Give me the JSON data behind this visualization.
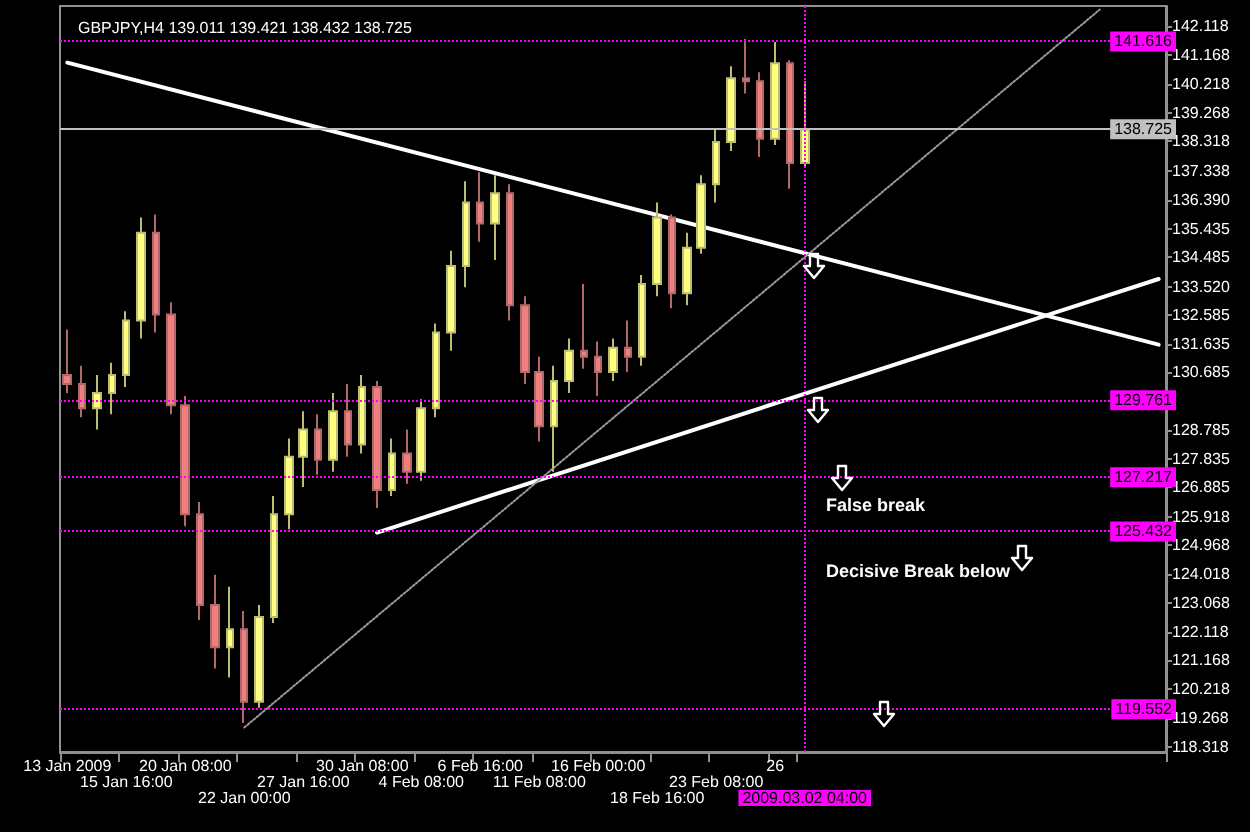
{
  "chart_data": {
    "type": "candlestick",
    "title": "GBPJPY,H4 139.011 139.421 138.432 138.725",
    "categories": [
      "13 Jan 2009",
      null,
      null,
      null,
      "15 Jan 16:00",
      null,
      null,
      null,
      "20 Jan 08:00",
      null,
      null,
      null,
      "22 Jan 00:00",
      null,
      null,
      null,
      "27 Jan 16:00",
      null,
      null,
      null,
      "30 Jan 08:00",
      null,
      null,
      null,
      "4 Feb 08:00",
      null,
      null,
      null,
      "6 Feb 16:00",
      null,
      null,
      null,
      "11 Feb 08:00",
      null,
      null,
      null,
      "16 Feb 00:00",
      null,
      null,
      null,
      "18 Feb 16:00",
      null,
      null,
      null,
      "23 Feb 08:00",
      null,
      null,
      null,
      "26",
      null,
      "2009.03.02 04:00",
      null,
      null,
      null,
      null,
      null,
      null,
      null,
      null,
      null,
      null,
      null,
      null,
      null,
      null,
      null,
      null,
      null,
      null,
      null,
      null,
      null,
      null,
      null,
      null
    ],
    "ohlc": [
      [
        130.6,
        132.1,
        130.0,
        130.3
      ],
      [
        130.3,
        130.9,
        129.2,
        129.5
      ],
      [
        129.5,
        130.6,
        128.8,
        130.0
      ],
      [
        130.0,
        131.0,
        129.3,
        130.6
      ],
      [
        130.6,
        132.7,
        130.2,
        132.4
      ],
      [
        132.4,
        135.8,
        131.8,
        135.3
      ],
      [
        135.3,
        135.9,
        132.0,
        132.6
      ],
      [
        132.6,
        133.0,
        129.3,
        129.6
      ],
      [
        129.6,
        129.9,
        125.6,
        126.0
      ],
      [
        126.0,
        126.4,
        122.5,
        123.0
      ],
      [
        123.0,
        124.0,
        120.9,
        121.6
      ],
      [
        121.6,
        123.6,
        120.6,
        122.2
      ],
      [
        122.2,
        122.8,
        119.1,
        119.8
      ],
      [
        119.8,
        123.0,
        119.6,
        122.6
      ],
      [
        122.6,
        126.6,
        122.4,
        126.0
      ],
      [
        126.0,
        128.5,
        125.5,
        127.9
      ],
      [
        127.9,
        129.4,
        126.9,
        128.8
      ],
      [
        128.8,
        129.3,
        127.3,
        127.8
      ],
      [
        127.8,
        130.0,
        127.4,
        129.4
      ],
      [
        129.4,
        130.3,
        127.9,
        128.3
      ],
      [
        128.3,
        130.6,
        128.0,
        130.2
      ],
      [
        130.2,
        130.4,
        126.2,
        126.8
      ],
      [
        126.8,
        128.5,
        126.6,
        128.0
      ],
      [
        128.0,
        128.8,
        127.0,
        127.4
      ],
      [
        127.4,
        129.8,
        127.1,
        129.5
      ],
      [
        129.5,
        132.3,
        129.2,
        132.0
      ],
      [
        132.0,
        134.7,
        131.4,
        134.2
      ],
      [
        134.2,
        137.0,
        133.5,
        136.3
      ],
      [
        136.3,
        137.3,
        135.0,
        135.6
      ],
      [
        135.6,
        137.2,
        134.4,
        136.6
      ],
      [
        136.6,
        136.9,
        132.4,
        132.9
      ],
      [
        132.9,
        133.2,
        130.3,
        130.7
      ],
      [
        130.7,
        131.2,
        128.4,
        128.9
      ],
      [
        128.9,
        130.9,
        127.4,
        130.4
      ],
      [
        130.4,
        131.8,
        130.0,
        131.4
      ],
      [
        131.4,
        133.6,
        130.8,
        131.2
      ],
      [
        131.2,
        131.7,
        129.9,
        130.7
      ],
      [
        130.7,
        131.8,
        130.4,
        131.5
      ],
      [
        131.5,
        132.4,
        130.7,
        131.2
      ],
      [
        131.2,
        133.9,
        130.9,
        133.6
      ],
      [
        133.6,
        136.3,
        133.2,
        135.8
      ],
      [
        135.8,
        135.9,
        132.8,
        133.3
      ],
      [
        133.3,
        135.3,
        132.9,
        134.8
      ],
      [
        134.8,
        137.2,
        134.6,
        136.9
      ],
      [
        136.9,
        138.7,
        136.3,
        138.3
      ],
      [
        138.3,
        140.8,
        138.0,
        140.4
      ],
      [
        140.4,
        141.7,
        139.9,
        140.3
      ],
      [
        140.3,
        140.6,
        137.8,
        138.4
      ],
      [
        138.4,
        141.6,
        138.2,
        140.9
      ],
      [
        140.9,
        141.0,
        136.75,
        137.6
      ],
      [
        137.6,
        140.3,
        137.5,
        138.7
      ],
      null,
      null,
      null,
      null,
      null,
      null,
      null,
      null,
      null,
      null,
      null,
      null,
      null,
      null,
      null,
      null,
      null,
      null,
      null,
      null,
      null,
      null,
      null,
      null
    ],
    "series": [
      {
        "type": "line",
        "color": "#ffffff",
        "line_style": "solid",
        "values": [
          140.92,
          null,
          null,
          null,
          null,
          null,
          null,
          null,
          null,
          null,
          null,
          null,
          null,
          null,
          null,
          null,
          null,
          null,
          null,
          null,
          null,
          null,
          null,
          null,
          null,
          null,
          null,
          null,
          null,
          null,
          null,
          null,
          null,
          null,
          null,
          null,
          null,
          null,
          null,
          null,
          null,
          null,
          null,
          null,
          null,
          null,
          null,
          null,
          null,
          null,
          null,
          null,
          null,
          null,
          null,
          null,
          null,
          null,
          null,
          null,
          null,
          null,
          null,
          null,
          null,
          null,
          null,
          null,
          null,
          null,
          null,
          null,
          null,
          null,
          131.6
        ]
      },
      {
        "type": "line",
        "color": "#ffffff",
        "line_style": "solid",
        "values": [
          null,
          null,
          null,
          null,
          null,
          null,
          null,
          null,
          null,
          null,
          null,
          null,
          null,
          null,
          null,
          null,
          null,
          null,
          null,
          null,
          null,
          125.39,
          null,
          null,
          null,
          null,
          null,
          null,
          null,
          null,
          null,
          null,
          null,
          null,
          null,
          null,
          null,
          null,
          null,
          null,
          null,
          null,
          null,
          null,
          null,
          null,
          null,
          null,
          null,
          null,
          null,
          null,
          null,
          null,
          null,
          null,
          null,
          null,
          null,
          null,
          null,
          null,
          null,
          null,
          null,
          null,
          null,
          null,
          null,
          null,
          null,
          null,
          null,
          null,
          133.77
        ]
      },
      {
        "type": "line",
        "color": "#9a9a9a",
        "line_style": "dotted",
        "values": [
          null,
          null,
          null,
          null,
          null,
          null,
          null,
          null,
          null,
          null,
          null,
          null,
          118.95,
          null,
          null,
          null,
          null,
          null,
          null,
          null,
          null,
          null,
          null,
          null,
          null,
          null,
          null,
          null,
          null,
          null,
          null,
          null,
          null,
          null,
          null,
          null,
          null,
          null,
          null,
          null,
          null,
          null,
          null,
          null,
          null,
          null,
          null,
          null,
          null,
          null,
          null,
          null,
          null,
          null,
          null,
          null,
          null,
          null,
          null,
          null,
          null,
          null,
          null,
          null,
          null,
          null,
          null,
          null,
          null,
          null,
          142.67,
          null,
          null,
          null,
          null
        ]
      }
    ],
    "ylim": [
      118.14,
      142.79
    ],
    "yticks": [
      118.318,
      119.268,
      120.218,
      121.168,
      122.118,
      123.068,
      124.018,
      124.968,
      125.918,
      126.885,
      127.835,
      128.785,
      130.685,
      131.635,
      132.585,
      {
        "value": 133.52,
        "label": "133.520"
      },
      134.485,
      135.435,
      {
        "value": 136.39,
        "label": "136.390"
      },
      137.338,
      138.318,
      139.268,
      140.218,
      141.168,
      142.118
    ],
    "ref_lines": [
      {
        "axis": "y",
        "value": 141.616,
        "label": "141.616",
        "color": "#ff00ff",
        "line_style": "dotted"
      },
      {
        "axis": "y",
        "value": 138.725,
        "label": "138.725",
        "color": "#c0c0c0",
        "line_style": "solid"
      },
      {
        "axis": "y",
        "value": 129.761,
        "label": "129.761",
        "color": "#ff00ff",
        "line_style": "dotted"
      },
      {
        "axis": "y",
        "value": 127.217,
        "label": "127.217",
        "color": "#ff00ff",
        "line_style": "dotted"
      },
      {
        "axis": "y",
        "value": 125.432,
        "label": "125.432",
        "color": "#ff00ff",
        "line_style": "dotted"
      },
      {
        "axis": "y",
        "value": 119.552,
        "label": "119.552",
        "color": "#ff00ff",
        "line_style": "dotted"
      },
      {
        "axis": "x",
        "value": "2009.03.02 04:00",
        "color": "#ff00ff",
        "line_style": "dotted"
      }
    ],
    "annotations": [
      "False break",
      "Decisive Break below"
    ]
  }
}
